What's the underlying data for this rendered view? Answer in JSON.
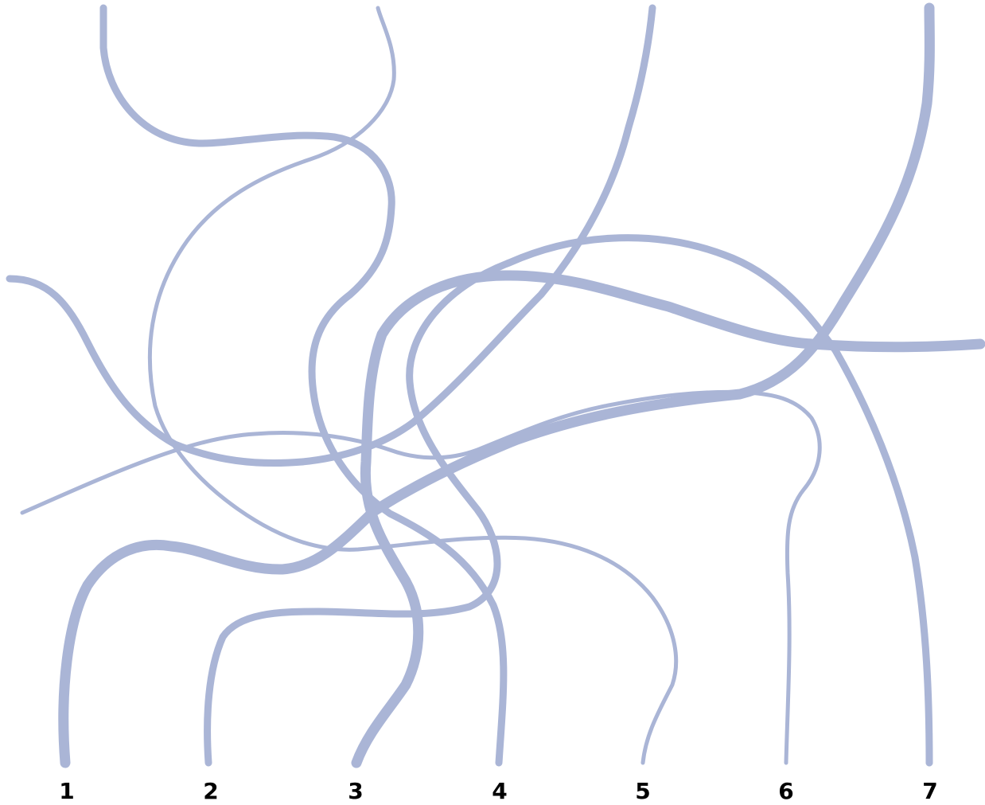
{
  "puzzle": {
    "rope_color": "#aab5d6",
    "label_color": "#000000",
    "background": "#ffffff",
    "end_labels": [
      "1",
      "2",
      "3",
      "4",
      "5",
      "6",
      "7"
    ]
  }
}
